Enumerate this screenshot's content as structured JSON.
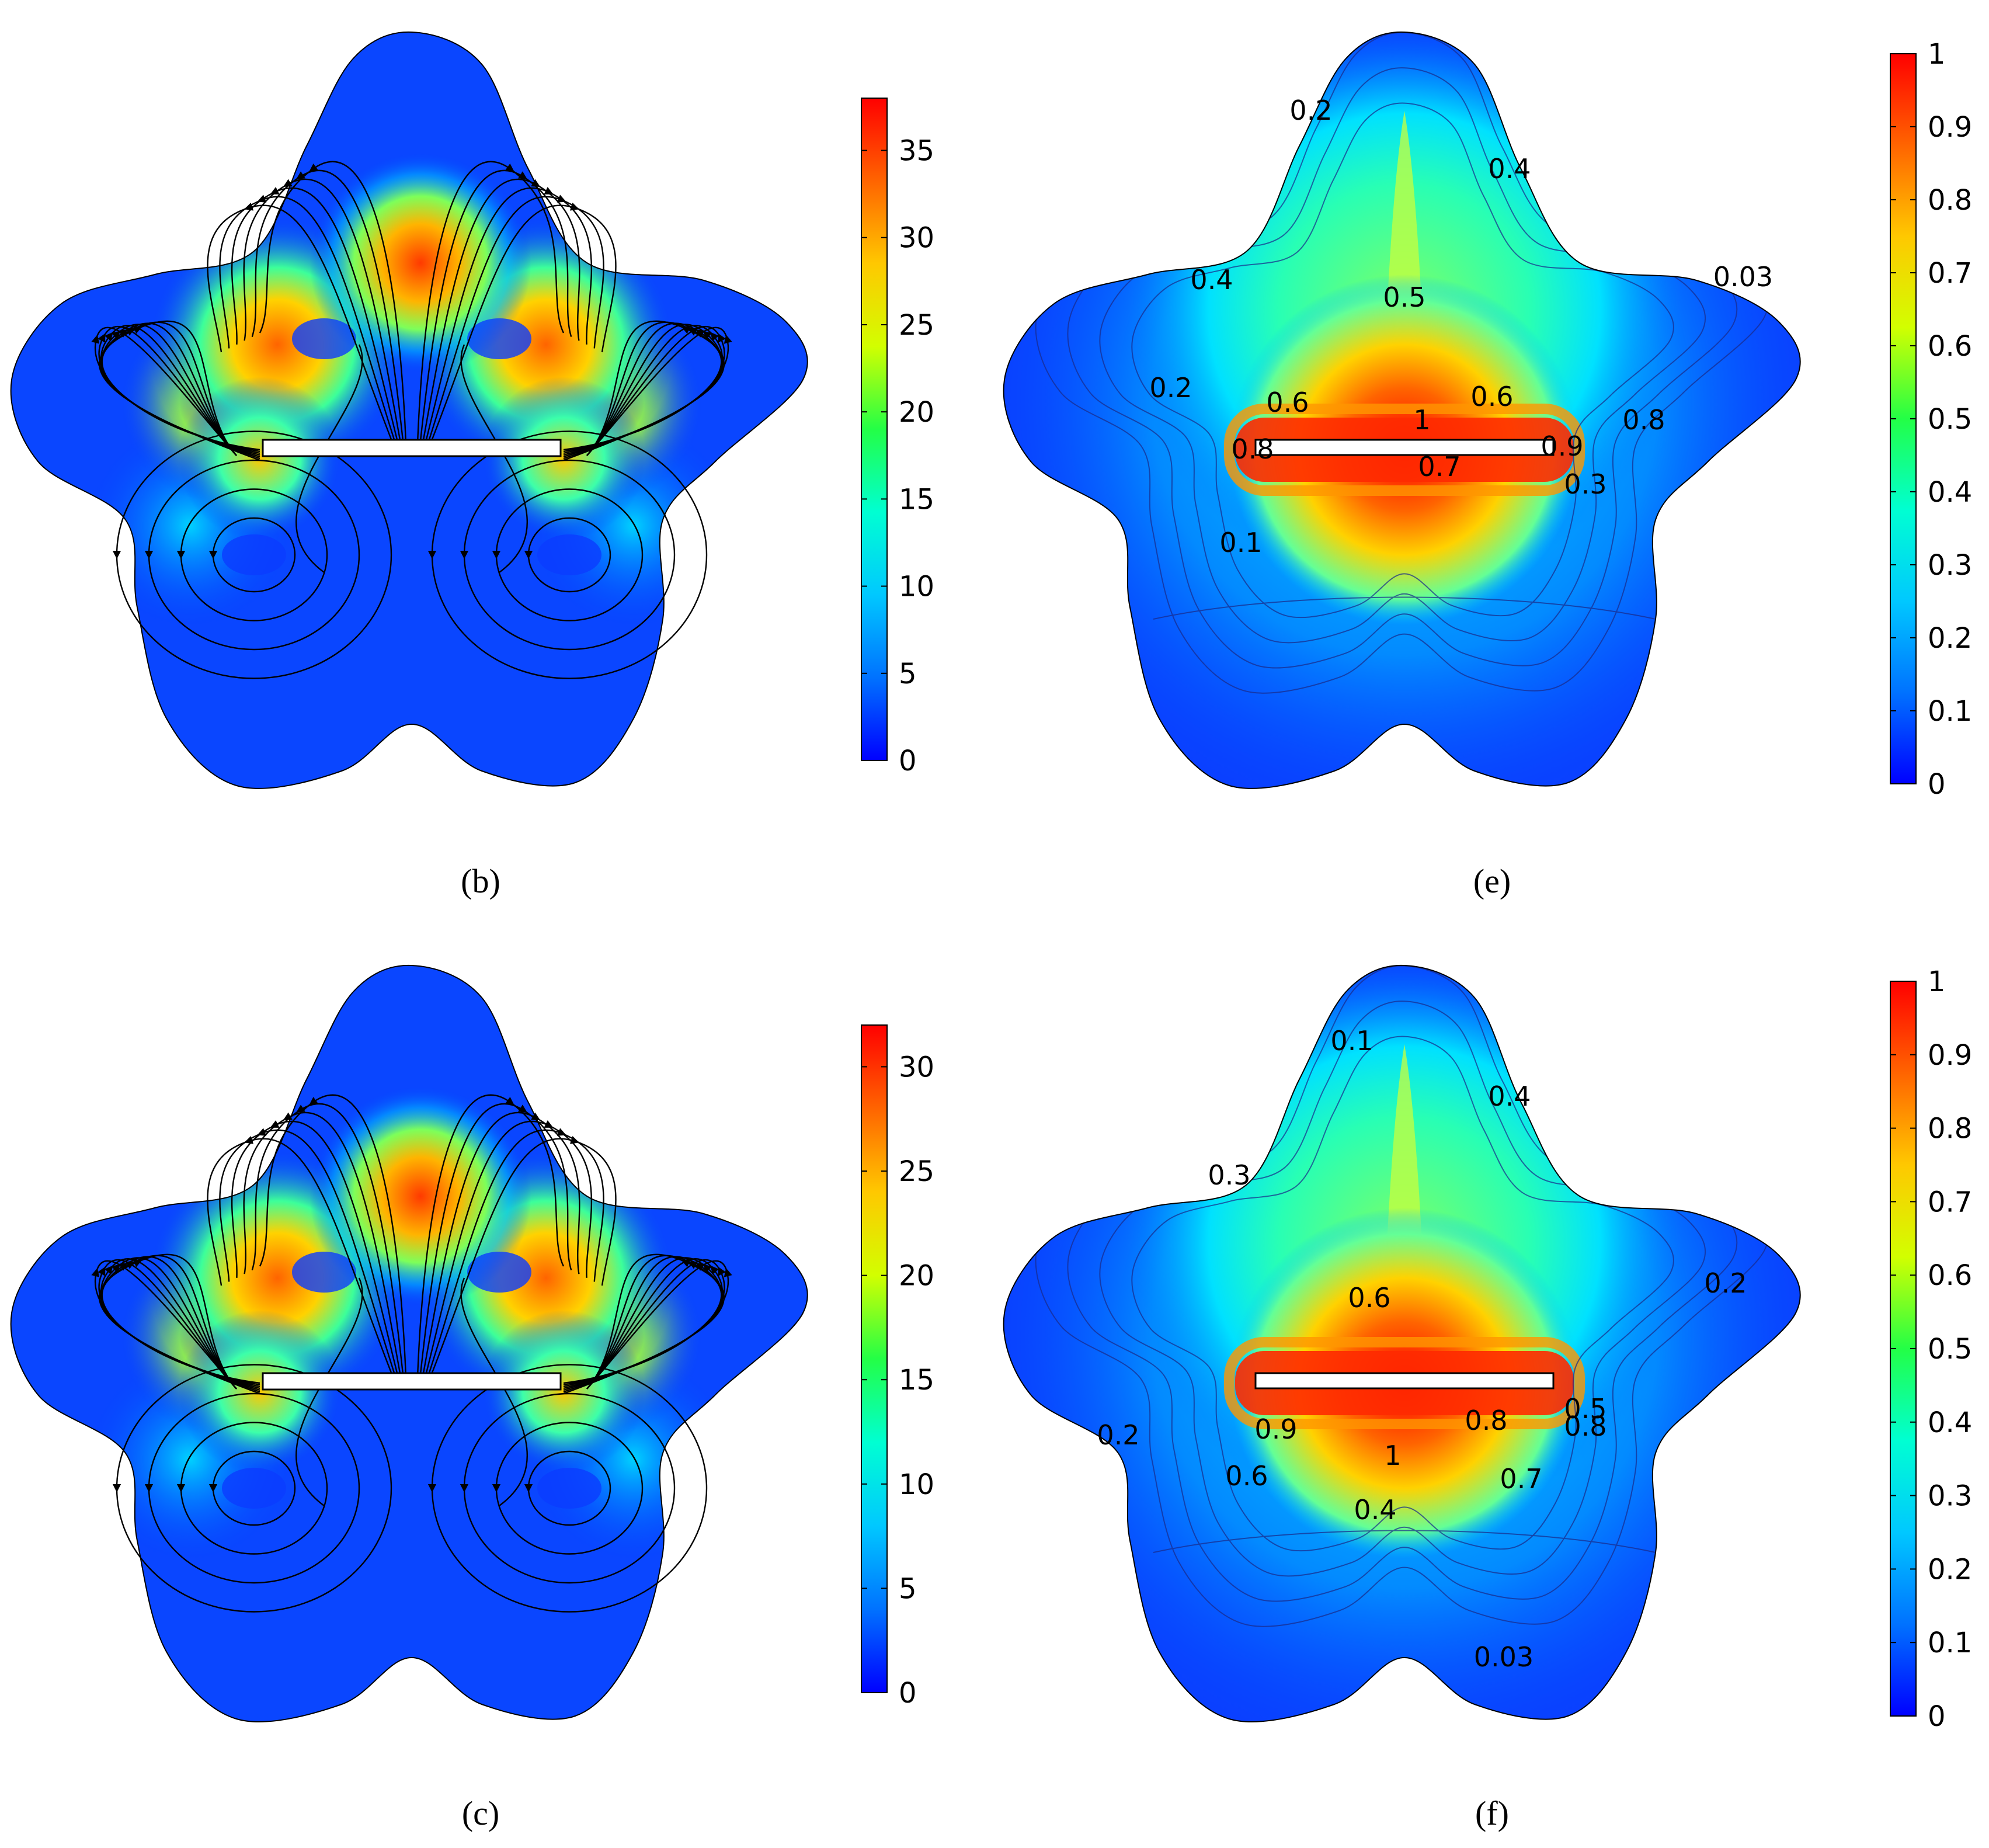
{
  "colors": {
    "colormap": [
      "#0000ff",
      "#0072ff",
      "#00c8ff",
      "#00ffd2",
      "#23ff46",
      "#d2ff00",
      "#ffc800",
      "#ff6400",
      "#ff0000"
    ],
    "background": "#ffffff",
    "streamline": "#000000",
    "plate": "#ffffff"
  },
  "chart_data": [
    {
      "panel": "b",
      "caption": "(b)",
      "type": "heatmap",
      "subtype": "velocity magnitude with streamlines",
      "colorbar": {
        "min": 0,
        "max": 38,
        "ticks": [
          0,
          5,
          10,
          15,
          20,
          25,
          30,
          35
        ]
      },
      "contour_labels": []
    },
    {
      "panel": "e",
      "caption": "(e)",
      "type": "heatmap",
      "subtype": "concentration with contour lines",
      "colorbar": {
        "min": 0,
        "max": 1,
        "ticks": [
          0,
          0.1,
          0.2,
          0.3,
          0.4,
          0.5,
          0.6,
          0.7,
          0.8,
          0.9,
          1
        ]
      },
      "contour_labels": [
        "0.2",
        "0.4",
        "0.4",
        "0.5",
        "0.03",
        "0.2",
        "0.6",
        "0.6",
        "0.8",
        "1",
        "0.8",
        "0.9",
        "0.7",
        "0.3",
        "0.1"
      ]
    },
    {
      "panel": "c",
      "caption": "(c)",
      "type": "heatmap",
      "subtype": "velocity magnitude with streamlines",
      "colorbar": {
        "min": 0,
        "max": 32,
        "ticks": [
          0,
          5,
          10,
          15,
          20,
          25,
          30
        ]
      },
      "contour_labels": []
    },
    {
      "panel": "f",
      "caption": "(f)",
      "type": "heatmap",
      "subtype": "concentration with contour lines",
      "colorbar": {
        "min": 0,
        "max": 1,
        "ticks": [
          0,
          0.1,
          0.2,
          0.3,
          0.4,
          0.5,
          0.6,
          0.7,
          0.8,
          0.9,
          1
        ]
      },
      "contour_labels": [
        "0.1",
        "0.4",
        "0.3",
        "0.2",
        "0.6",
        "0.2",
        "0.9",
        "0.8",
        "0.5",
        "0.8",
        "1",
        "0.6",
        "0.7",
        "0.4",
        "0.03"
      ]
    }
  ]
}
